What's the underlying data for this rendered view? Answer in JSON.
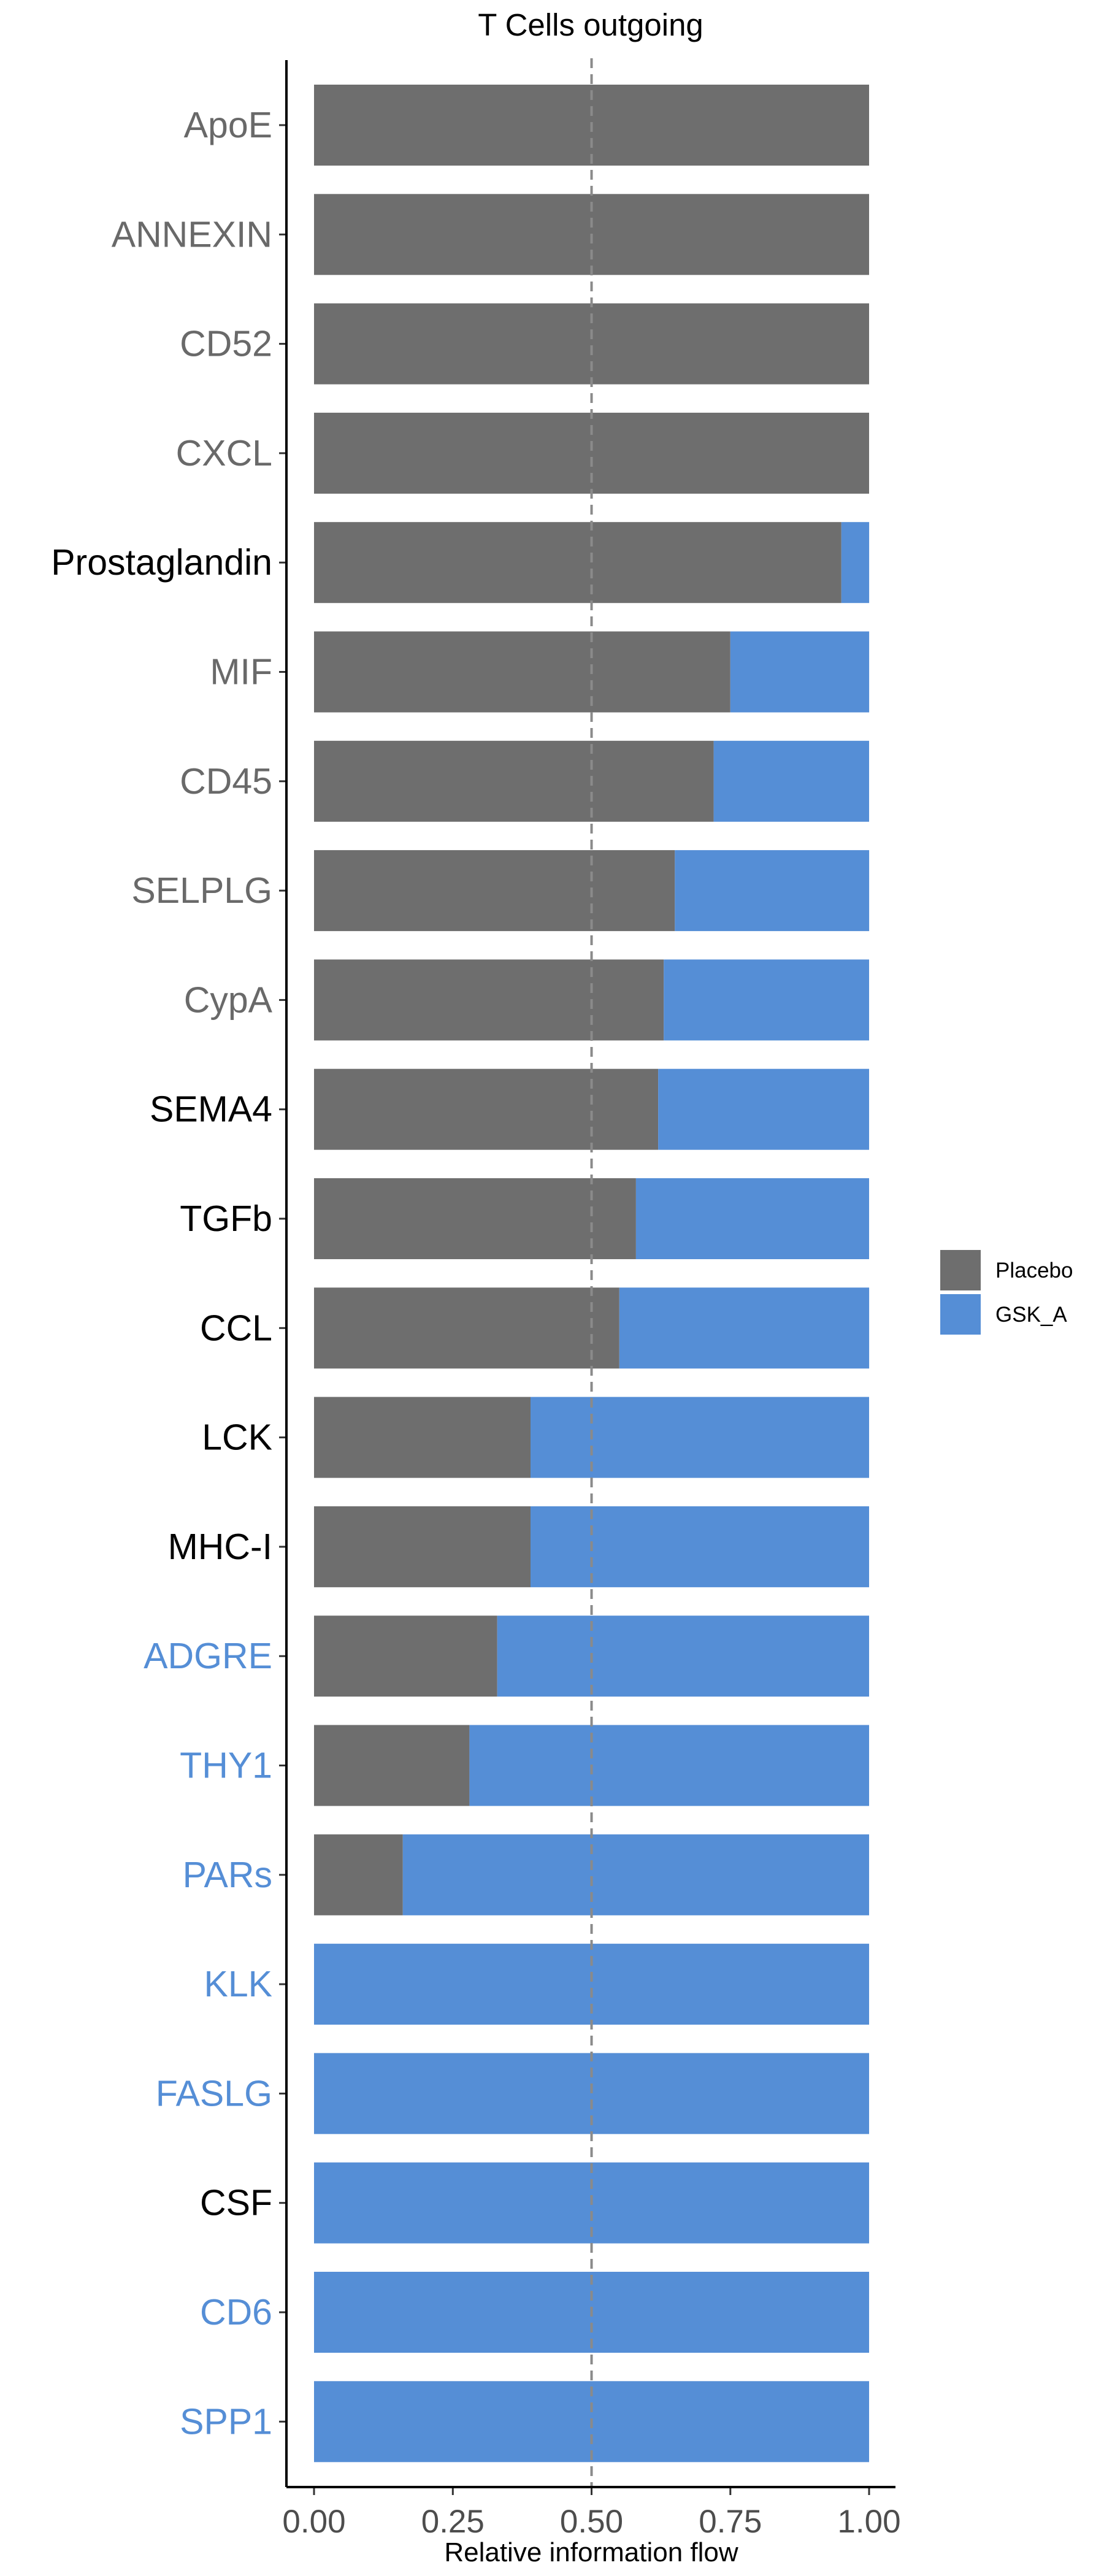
{
  "chart_data": {
    "type": "bar",
    "orientation": "horizontal",
    "stacked": true,
    "title": "T Cells outgoing",
    "xlabel": "Relative information flow",
    "ylabel": "",
    "xlim": [
      0,
      1
    ],
    "xticks": [
      "0.00",
      "0.25",
      "0.50",
      "0.75",
      "1.00"
    ],
    "reference_line": 0.5,
    "categories": [
      "ApoE",
      "ANNEXIN",
      "CD52",
      "CXCL",
      "Prostaglandin",
      "MIF",
      "CD45",
      "SELPLG",
      "CypA",
      "SEMA4",
      "TGFb",
      "CCL",
      "LCK",
      "MHC-I",
      "ADGRE",
      "THY1",
      "PARs",
      "KLK",
      "FASLG",
      "CSF",
      "CD6",
      "SPP1"
    ],
    "label_colors": [
      "#696969",
      "#696969",
      "#696969",
      "#696969",
      "#000000",
      "#696969",
      "#696969",
      "#696969",
      "#696969",
      "#000000",
      "#000000",
      "#000000",
      "#000000",
      "#000000",
      "#558ed6",
      "#558ed6",
      "#558ed6",
      "#558ed6",
      "#558ed6",
      "#000000",
      "#558ed6",
      "#558ed6"
    ],
    "series": [
      {
        "name": "Placebo",
        "color": "#6e6e6e",
        "values": [
          1.0,
          1.0,
          1.0,
          1.0,
          0.95,
          0.75,
          0.72,
          0.65,
          0.63,
          0.62,
          0.58,
          0.55,
          0.39,
          0.39,
          0.33,
          0.28,
          0.16,
          0.0,
          0.0,
          0.0,
          0.0,
          0.0
        ]
      },
      {
        "name": "GSK_A",
        "color": "#558ed6",
        "values": [
          0.0,
          0.0,
          0.0,
          0.0,
          0.05,
          0.25,
          0.28,
          0.35,
          0.37,
          0.38,
          0.42,
          0.45,
          0.61,
          0.61,
          0.67,
          0.72,
          0.84,
          1.0,
          1.0,
          1.0,
          1.0,
          1.0
        ]
      }
    ],
    "legend": {
      "position": "right",
      "entries": [
        "Placebo",
        "GSK_A"
      ]
    },
    "grid": false
  }
}
